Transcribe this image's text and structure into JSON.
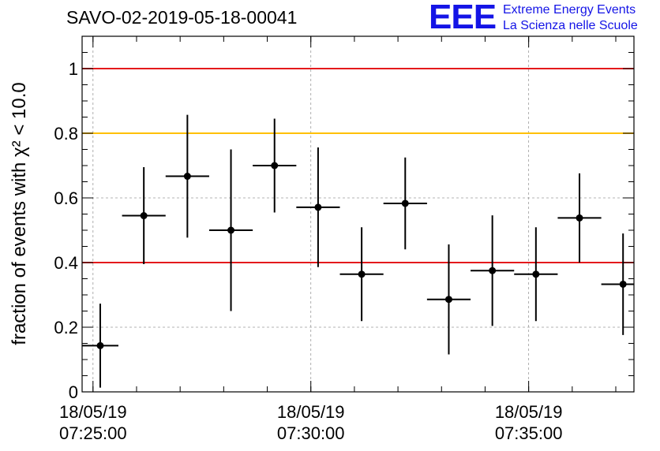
{
  "title": "SAVO-02-2019-05-18-00041",
  "logo": {
    "mark": "EEE",
    "line1": "Extreme Energy Events",
    "line2": "La Scienza nelle Scuole"
  },
  "colors": {
    "reference_line": "#e41a1c",
    "warning_line": "#ffc000",
    "marker": "#000000",
    "grid": "#9a9a9a",
    "logo": "#1414e6"
  },
  "chart_data": {
    "type": "scatter",
    "title": "SAVO-02-2019-05-18-00041",
    "ylabel": "fraction of events with χ² < 10.0",
    "xlabel": "",
    "xlim": [
      "18/05/19 07:24:45",
      "18/05/19 07:37:25"
    ],
    "ylim": [
      0,
      1.1
    ],
    "x_ticks": [
      {
        "date": "18/05/19",
        "time": "07:25:00"
      },
      {
        "date": "18/05/19",
        "time": "07:30:00"
      },
      {
        "date": "18/05/19",
        "time": "07:35:00"
      }
    ],
    "y_ticks": [
      "0",
      "0.2",
      "0.4",
      "0.6",
      "0.8",
      "1"
    ],
    "grid": true,
    "reference_lines": [
      {
        "y": 1.0,
        "color": "#e41a1c"
      },
      {
        "y": 0.8,
        "color": "#ffc000"
      },
      {
        "y": 0.4,
        "color": "#e41a1c"
      }
    ],
    "points": [
      {
        "x": "07:25:10",
        "y": 0.143,
        "yerr_low": 0.13,
        "yerr_high": 0.13,
        "x_low": "07:24:45",
        "x_high": "07:25:35"
      },
      {
        "x": "07:26:10",
        "y": 0.545,
        "yerr_low": 0.15,
        "yerr_high": 0.15,
        "x_low": "07:25:40",
        "x_high": "07:26:40"
      },
      {
        "x": "07:27:10",
        "y": 0.667,
        "yerr_low": 0.19,
        "yerr_high": 0.19,
        "x_low": "07:26:40",
        "x_high": "07:27:40"
      },
      {
        "x": "07:28:10",
        "y": 0.5,
        "yerr_low": 0.25,
        "yerr_high": 0.25,
        "x_low": "07:27:40",
        "x_high": "07:28:40"
      },
      {
        "x": "07:29:10",
        "y": 0.7,
        "yerr_low": 0.145,
        "yerr_high": 0.145,
        "x_low": "07:28:40",
        "x_high": "07:29:40"
      },
      {
        "x": "07:30:10",
        "y": 0.571,
        "yerr_low": 0.185,
        "yerr_high": 0.185,
        "x_low": "07:29:40",
        "x_high": "07:30:40"
      },
      {
        "x": "07:31:10",
        "y": 0.364,
        "yerr_low": 0.145,
        "yerr_high": 0.145,
        "x_low": "07:30:40",
        "x_high": "07:31:40"
      },
      {
        "x": "07:32:10",
        "y": 0.583,
        "yerr_low": 0.142,
        "yerr_high": 0.142,
        "x_low": "07:31:40",
        "x_high": "07:32:40"
      },
      {
        "x": "07:33:10",
        "y": 0.286,
        "yerr_low": 0.17,
        "yerr_high": 0.17,
        "x_low": "07:32:40",
        "x_high": "07:33:40"
      },
      {
        "x": "07:34:10",
        "y": 0.375,
        "yerr_low": 0.171,
        "yerr_high": 0.171,
        "x_low": "07:33:40",
        "x_high": "07:34:40"
      },
      {
        "x": "07:35:10",
        "y": 0.364,
        "yerr_low": 0.145,
        "yerr_high": 0.145,
        "x_low": "07:34:40",
        "x_high": "07:35:40"
      },
      {
        "x": "07:36:10",
        "y": 0.538,
        "yerr_low": 0.138,
        "yerr_high": 0.138,
        "x_low": "07:35:40",
        "x_high": "07:36:40"
      },
      {
        "x": "07:37:10",
        "y": 0.333,
        "yerr_low": 0.157,
        "yerr_high": 0.157,
        "x_low": "07:36:40",
        "x_high": "07:37:25"
      }
    ]
  }
}
